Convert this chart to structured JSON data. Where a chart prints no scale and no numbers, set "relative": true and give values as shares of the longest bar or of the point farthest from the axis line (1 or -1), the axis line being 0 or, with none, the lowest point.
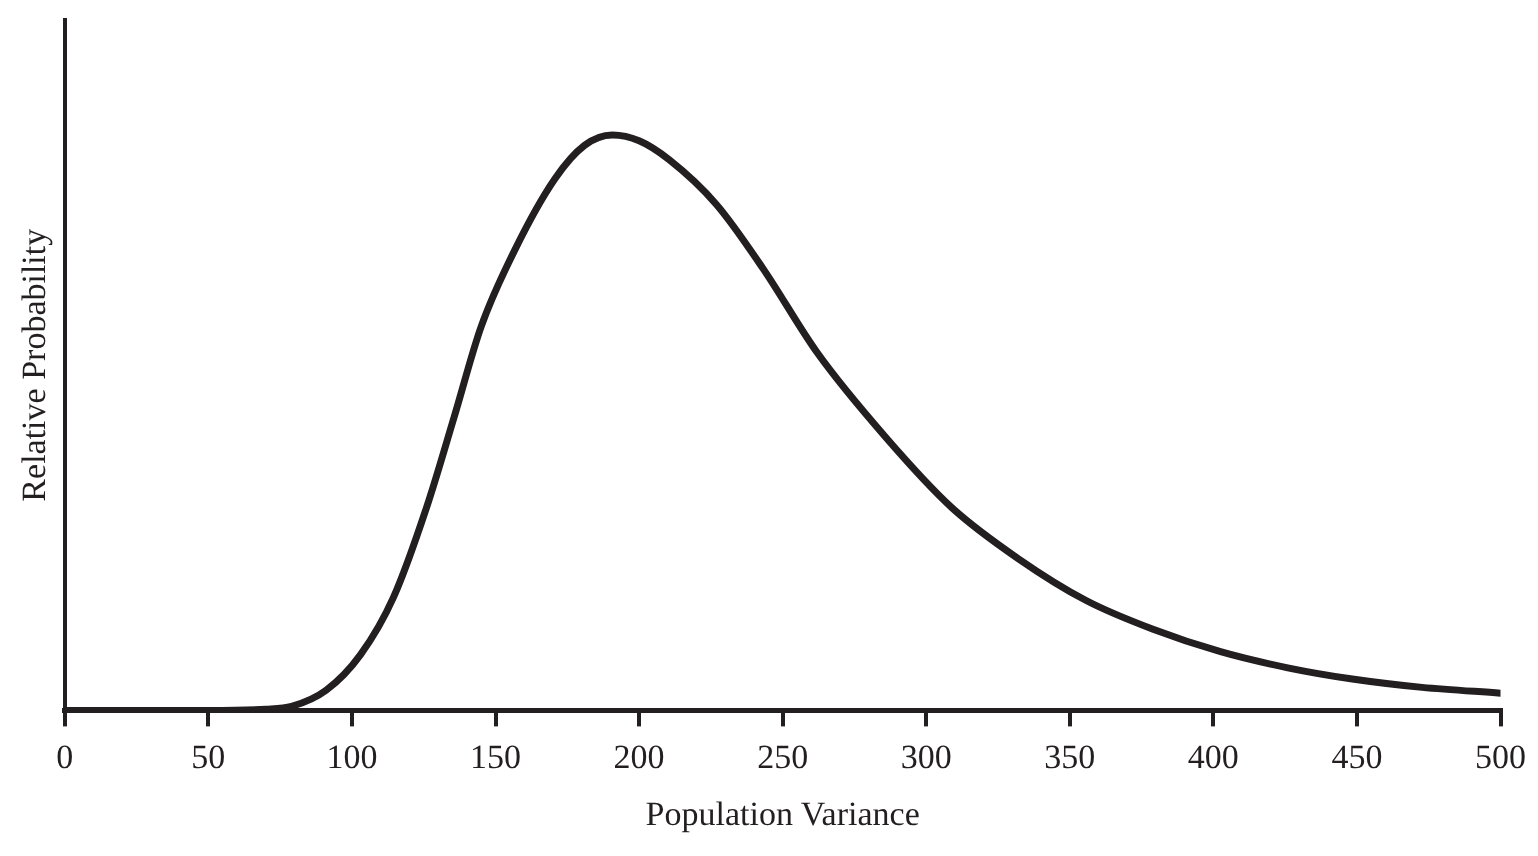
{
  "chart_data": {
    "type": "line",
    "relative": true,
    "xlabel": "Population Variance",
    "ylabel": "Relative Probability",
    "x": [
      0,
      50,
      70,
      79,
      91,
      103,
      114.5,
      126,
      135.6,
      145,
      156.7,
      170.7,
      181,
      190.7,
      200,
      210.5,
      227,
      243.3,
      262,
      285.5,
      308.8,
      332,
      355.7,
      379,
      402.5,
      425.9,
      449,
      472.7,
      500
    ],
    "series": [
      {
        "color": "#231f20",
        "values": [
          0,
          0,
          0.002,
          0.007,
          0.035,
          0.097,
          0.197,
          0.353,
          0.51,
          0.667,
          0.8,
          0.924,
          0.982,
          1,
          0.99,
          0.957,
          0.879,
          0.767,
          0.622,
          0.477,
          0.353,
          0.264,
          0.191,
          0.141,
          0.102,
          0.074,
          0.054,
          0.04,
          0.03
        ]
      }
    ],
    "xlim": [
      0,
      500
    ],
    "xticks": [
      0,
      50,
      100,
      150,
      200,
      250,
      300,
      350,
      400,
      450,
      500
    ],
    "grid": false,
    "legend": false,
    "marker": "none",
    "line_style": "solid"
  }
}
